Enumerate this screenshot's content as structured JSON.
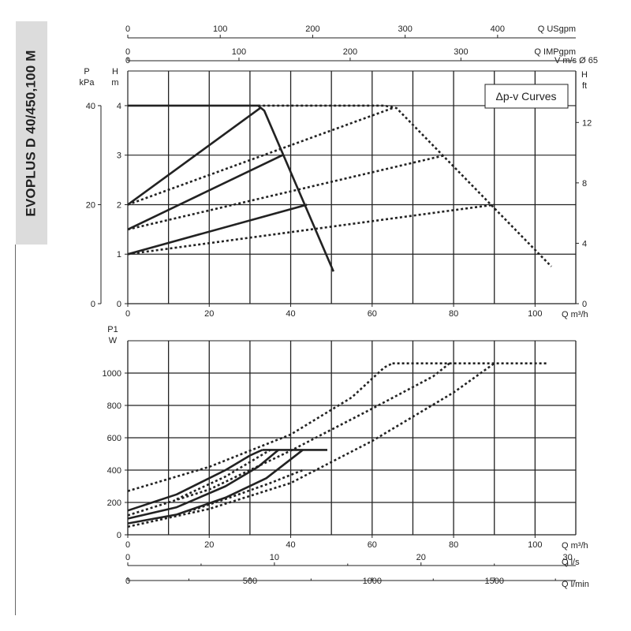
{
  "side_title": "EVOPLUS D 40/450,100 M",
  "chart_data": [
    {
      "id": "head",
      "type": "line",
      "legend_label": "Δp-v Curves",
      "legend_position": "top-right",
      "grid": true,
      "x": {
        "label": "Q m³/h",
        "range": [
          0,
          110
        ],
        "ticks": [
          0,
          20,
          40,
          60,
          80,
          100
        ]
      },
      "y_head": {
        "label_top": "H",
        "label_unit": "m",
        "range": [
          0,
          4.7
        ],
        "ticks": [
          0,
          1,
          2,
          3,
          4
        ]
      },
      "y_pressure": {
        "label_top": "P",
        "label_unit": "kPa",
        "ticks": [
          0,
          20,
          40
        ],
        "ticks_at_m": [
          0,
          2,
          4
        ]
      },
      "y_feet": {
        "label_top": "H",
        "label_unit": "ft",
        "ticks": [
          0,
          4,
          8,
          12
        ],
        "ticks_at_m": [
          0,
          1.22,
          2.44,
          3.66
        ]
      },
      "top_axes": [
        {
          "label": "Q USgpm",
          "ticks": [
            0,
            100,
            200,
            300,
            400
          ],
          "ticks_at_m3h": [
            0,
            22.7,
            45.4,
            68.1,
            90.8
          ]
        },
        {
          "label": "Q IMPgpm",
          "ticks": [
            0,
            100,
            200,
            300
          ],
          "ticks_at_m3h": [
            0,
            27.3,
            54.6,
            81.8
          ]
        },
        {
          "label": "V m/s Ø 65",
          "ticks": [
            0
          ],
          "ticks_at_m3h": [
            0
          ]
        }
      ],
      "series": [
        {
          "style": "solid",
          "points": [
            [
              0,
              4
            ],
            [
              32,
              4
            ],
            [
              33.5,
              3.9
            ],
            [
              50.5,
              0.65
            ]
          ]
        },
        {
          "style": "solid",
          "points": [
            [
              0,
              2
            ],
            [
              32.5,
              3.95
            ]
          ]
        },
        {
          "style": "solid",
          "points": [
            [
              0,
              1.5
            ],
            [
              38,
              3
            ]
          ]
        },
        {
          "style": "solid",
          "points": [
            [
              0,
              1
            ],
            [
              44,
              2
            ]
          ]
        },
        {
          "style": "dashed",
          "points": [
            [
              32,
              4
            ],
            [
              63,
              4
            ],
            [
              66,
              3.95
            ],
            [
              104,
              0.75
            ]
          ]
        },
        {
          "style": "dashed",
          "points": [
            [
              0,
              2
            ],
            [
              65,
              3.95
            ]
          ]
        },
        {
          "style": "dashed",
          "points": [
            [
              0,
              1.5
            ],
            [
              78,
              3
            ]
          ]
        },
        {
          "style": "dashed",
          "points": [
            [
              0,
              1
            ],
            [
              90,
              2
            ]
          ]
        }
      ]
    },
    {
      "id": "power",
      "type": "line",
      "grid": true,
      "x": {
        "label": "Q m³/h",
        "range": [
          0,
          110
        ],
        "ticks": [
          0,
          20,
          40,
          60,
          80,
          100
        ]
      },
      "y": {
        "label_top": "P1",
        "label_unit": "W",
        "range": [
          0,
          1200
        ],
        "ticks": [
          0,
          200,
          400,
          600,
          800,
          1000
        ]
      },
      "bottom_axes": [
        {
          "label": "Q l/s",
          "ticks": [
            0,
            10,
            20,
            30
          ],
          "ticks_at_m3h": [
            0,
            36,
            72,
            108
          ]
        },
        {
          "label": "Q l/min",
          "ticks": [
            0,
            500,
            1000,
            1500
          ],
          "ticks_at_m3h": [
            0,
            30,
            60,
            90
          ]
        }
      ],
      "series": [
        {
          "style": "solid",
          "points": [
            [
              0,
              150
            ],
            [
              12,
              250
            ],
            [
              24,
              400
            ],
            [
              30,
              490
            ],
            [
              33,
              525
            ]
          ]
        },
        {
          "style": "solid",
          "points": [
            [
              0,
              100
            ],
            [
              12,
              170
            ],
            [
              24,
              300
            ],
            [
              32,
              420
            ],
            [
              37,
              525
            ]
          ]
        },
        {
          "style": "solid",
          "points": [
            [
              0,
              70
            ],
            [
              12,
              125
            ],
            [
              24,
              230
            ],
            [
              34,
              350
            ],
            [
              43,
              525
            ]
          ]
        },
        {
          "style": "solid",
          "points": [
            [
              33,
              525
            ],
            [
              49,
              525
            ]
          ]
        },
        {
          "style": "dashed",
          "points": [
            [
              0,
              270
            ],
            [
              20,
              420
            ],
            [
              40,
              620
            ],
            [
              55,
              850
            ],
            [
              63,
              1035
            ],
            [
              65,
              1060
            ]
          ]
        },
        {
          "style": "dashed",
          "points": [
            [
              0,
              120
            ],
            [
              20,
              280
            ],
            [
              40,
              520
            ],
            [
              60,
              780
            ],
            [
              75,
              980
            ],
            [
              79,
              1060
            ]
          ]
        },
        {
          "style": "dashed",
          "points": [
            [
              0,
              50
            ],
            [
              20,
              160
            ],
            [
              40,
              320
            ],
            [
              60,
              580
            ],
            [
              80,
              880
            ],
            [
              90,
              1060
            ]
          ]
        },
        {
          "style": "dashed",
          "points": [
            [
              65,
              1060
            ],
            [
              103,
              1060
            ]
          ]
        },
        {
          "style": "dashed",
          "points": [
            [
              12,
              220
            ],
            [
              24,
              360
            ],
            [
              35,
              525
            ]
          ]
        },
        {
          "style": "dashed",
          "points": [
            [
              15,
              145
            ],
            [
              25,
              230
            ],
            [
              35,
              320
            ],
            [
              43,
              400
            ]
          ]
        }
      ]
    }
  ]
}
